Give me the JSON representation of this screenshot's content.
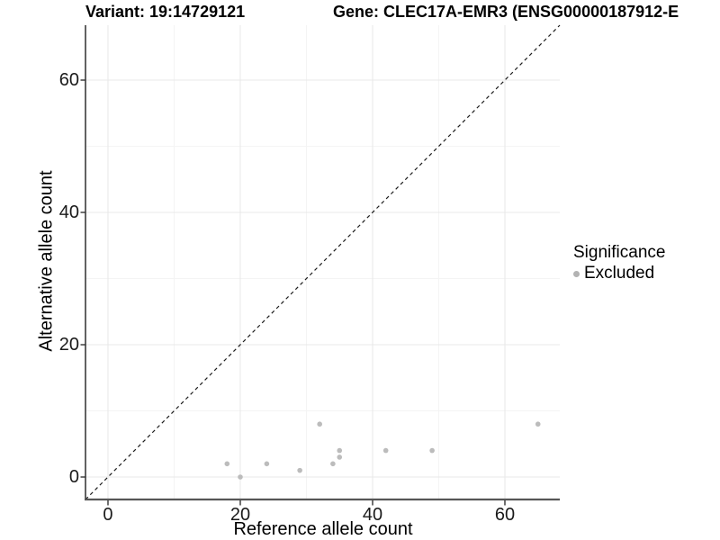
{
  "titles": {
    "variant": "Variant: 19:14729121",
    "gene": "Gene: CLEC17A-EMR3 (ENSG00000187912-E"
  },
  "axes": {
    "x_label": "Reference allele count",
    "y_label": "Alternative allele count"
  },
  "legend": {
    "title": "Significance",
    "items": [
      {
        "label": "Excluded",
        "color": "#b3b3b3"
      }
    ]
  },
  "chart_data": {
    "type": "scatter",
    "title": "Variant: 19:14729121 / Gene: CLEC17A-EMR3 (ENSG00000187912-E",
    "xlabel": "Reference allele count",
    "ylabel": "Alternative allele count",
    "xlim": [
      -3.4,
      68.3
    ],
    "ylim": [
      -3.4,
      68.3
    ],
    "x_ticks": [
      0,
      20,
      40,
      60
    ],
    "y_ticks": [
      0,
      20,
      40,
      60
    ],
    "x_minor_ticks": [
      10,
      30,
      50
    ],
    "y_minor_ticks": [
      10,
      30,
      50
    ],
    "grid": true,
    "legend_position": "right",
    "reference_line": {
      "type": "identity",
      "style": "dashed",
      "label": "y = x"
    },
    "series": [
      {
        "name": "Excluded",
        "color": "#bcbcbc",
        "points": [
          [
            18,
            2
          ],
          [
            20,
            0
          ],
          [
            24,
            2
          ],
          [
            29,
            1
          ],
          [
            32,
            8
          ],
          [
            34,
            2
          ],
          [
            35,
            3
          ],
          [
            35,
            4
          ],
          [
            42,
            4
          ],
          [
            49,
            4
          ],
          [
            65,
            8
          ]
        ]
      }
    ]
  },
  "colors": {
    "point": "#bcbcbc",
    "grid_major": "#e9e9e9",
    "grid_minor": "#f4f4f4",
    "axis_line_left": "#2e2e2e",
    "axis_line_bottom": "#565656",
    "tick_mark": "#333333",
    "diagonal": "#1c1c1c",
    "text": "#000000"
  }
}
